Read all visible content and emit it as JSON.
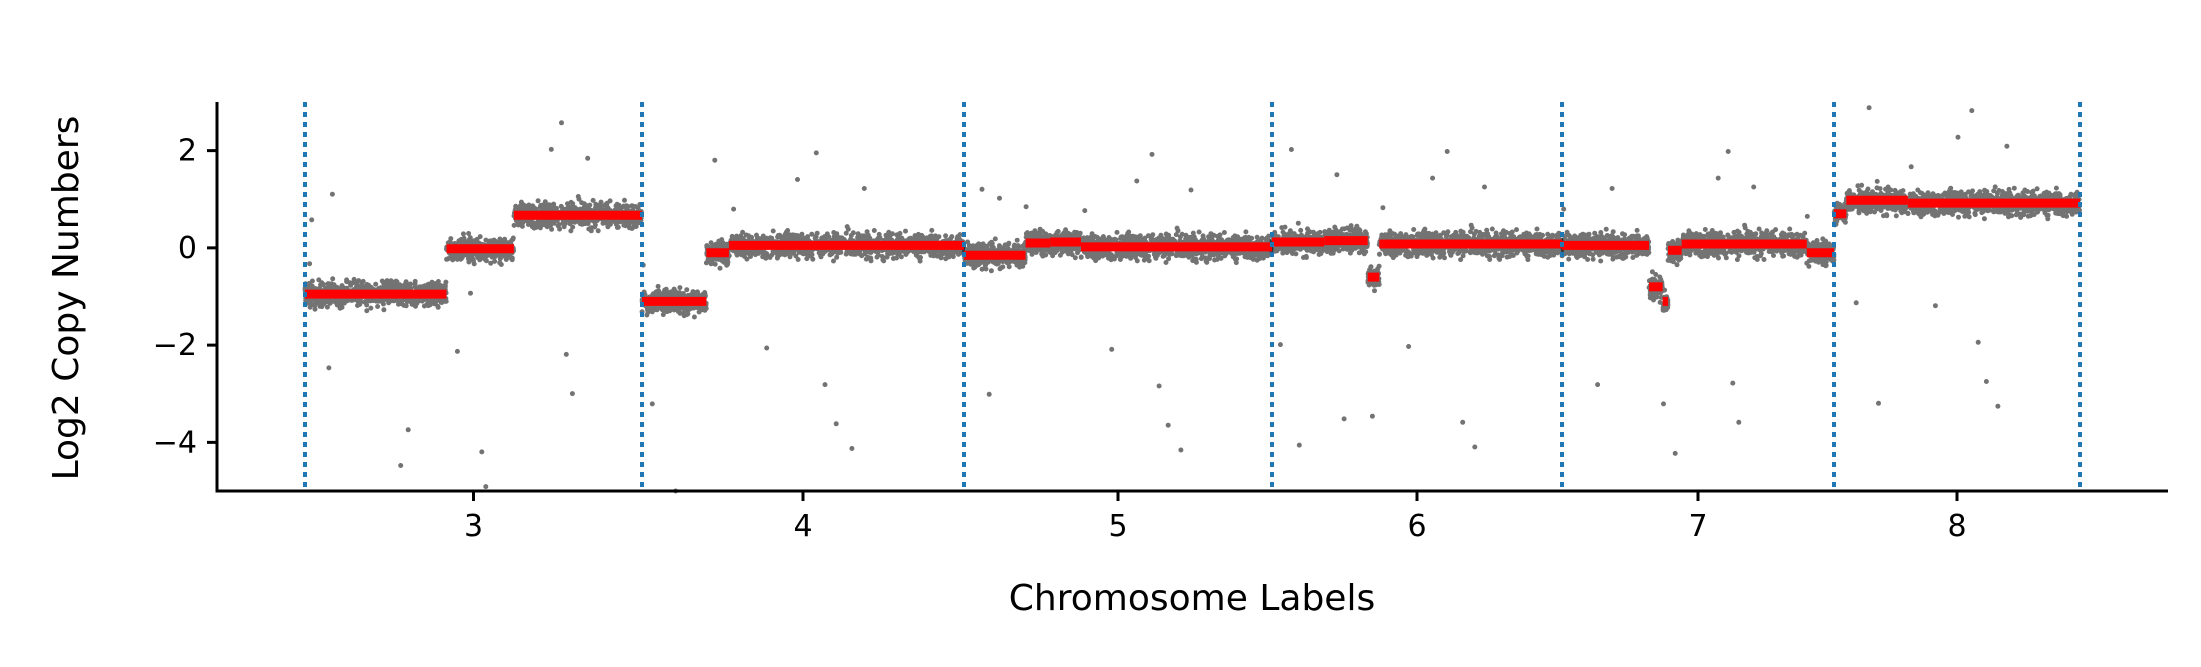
{
  "chart_data": {
    "type": "scatter",
    "title": "",
    "xlabel": "Chromosome Labels",
    "ylabel": "Log2 Copy Numbers",
    "x_tick_labels": [
      "3",
      "4",
      "5",
      "6",
      "7",
      "8"
    ],
    "y_ticks": [
      2,
      0,
      -2,
      -4
    ],
    "y_tick_labels": [
      "2",
      "0",
      "−2",
      "−4"
    ],
    "ylim": [
      -5,
      3
    ],
    "grid": false,
    "legend": "none",
    "colors": {
      "points": "#000000",
      "segments": "#ff0000",
      "boundaries": "#1f77b4",
      "axes": "#000000"
    },
    "chromosomes": [
      {
        "label": "3",
        "segments": [
          {
            "start": 0.0,
            "end": 0.42,
            "value": -0.95
          },
          {
            "start": 0.42,
            "end": 0.62,
            "value": -0.02
          },
          {
            "start": 0.62,
            "end": 1.0,
            "value": 0.67
          }
        ]
      },
      {
        "label": "4",
        "segments": [
          {
            "start": 0.0,
            "end": 0.2,
            "value": -1.1
          },
          {
            "start": 0.2,
            "end": 0.27,
            "value": -0.1
          },
          {
            "start": 0.27,
            "end": 1.0,
            "value": 0.05
          }
        ]
      },
      {
        "label": "5",
        "segments": [
          {
            "start": 0.0,
            "end": 0.2,
            "value": -0.15
          },
          {
            "start": 0.2,
            "end": 0.28,
            "value": 0.1
          },
          {
            "start": 0.28,
            "end": 0.38,
            "value": 0.12
          },
          {
            "start": 0.38,
            "end": 1.0,
            "value": 0.02
          }
        ]
      },
      {
        "label": "6",
        "segments": [
          {
            "start": 0.0,
            "end": 0.18,
            "value": 0.12
          },
          {
            "start": 0.18,
            "end": 0.33,
            "value": 0.15
          },
          {
            "start": 0.33,
            "end": 0.37,
            "value": -0.6
          },
          {
            "start": 0.37,
            "end": 1.0,
            "value": 0.08
          }
        ]
      },
      {
        "label": "7",
        "segments": [
          {
            "start": 0.0,
            "end": 0.32,
            "value": 0.05
          },
          {
            "start": 0.32,
            "end": 0.37,
            "value": -0.8
          },
          {
            "start": 0.37,
            "end": 0.39,
            "value": -1.1
          },
          {
            "start": 0.39,
            "end": 0.44,
            "value": -0.05
          },
          {
            "start": 0.44,
            "end": 0.9,
            "value": 0.08
          },
          {
            "start": 0.9,
            "end": 1.0,
            "value": -0.1
          }
        ]
      },
      {
        "label": "8",
        "segments": [
          {
            "start": 0.0,
            "end": 0.05,
            "value": 0.7
          },
          {
            "start": 0.05,
            "end": 0.3,
            "value": 0.98
          },
          {
            "start": 0.3,
            "end": 1.0,
            "value": 0.92
          }
        ]
      }
    ]
  }
}
